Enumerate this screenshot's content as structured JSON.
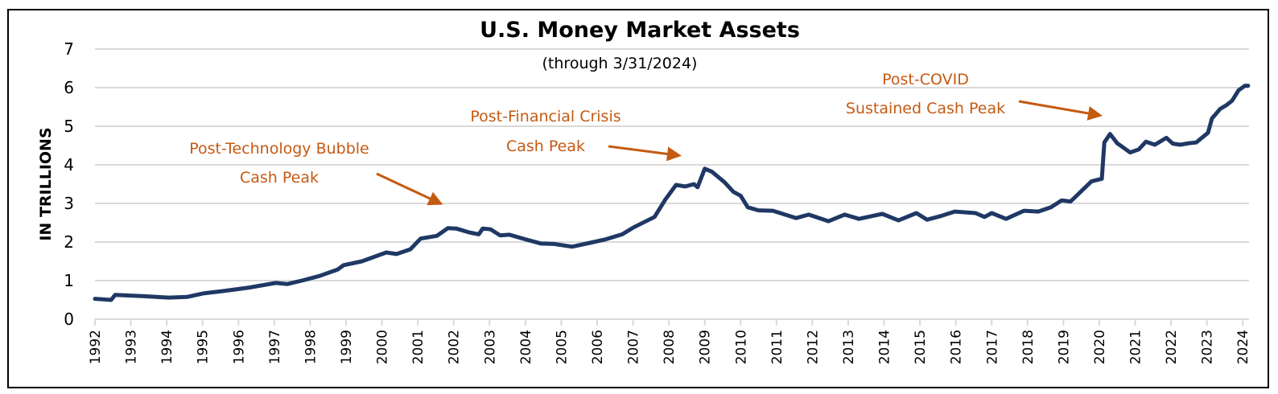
{
  "chart_data": {
    "type": "line",
    "title": "U.S. Money Market Assets",
    "subtitle": "(through 3/31/2024)",
    "xlabel": "",
    "ylabel": "IN TRILLIONS",
    "ylim": [
      0,
      7
    ],
    "xlim": [
      1992,
      2024.15
    ],
    "grid": true,
    "y_ticks": [
      "0",
      "1",
      "2",
      "3",
      "4",
      "5",
      "6",
      "7"
    ],
    "x_ticks": [
      "1992",
      "1993",
      "1994",
      "1995",
      "1996",
      "1997",
      "1998",
      "1999",
      "2000",
      "2001",
      "2002",
      "2003",
      "2004",
      "2005",
      "2006",
      "2007",
      "2008",
      "2009",
      "2010",
      "2011",
      "2012",
      "2013",
      "2014",
      "2015",
      "2016",
      "2017",
      "2018",
      "2019",
      "2020",
      "2021",
      "2022",
      "2023",
      "2024"
    ],
    "colors": {
      "line": "#1F3864",
      "annotation": "#C55A11",
      "grid": "#D9D9D9"
    },
    "series": [
      {
        "name": "U.S. Money Market Assets",
        "x": [
          1992.0,
          1992.45,
          1992.56,
          1993.32,
          1994.06,
          1994.58,
          1995.03,
          1995.57,
          1996.3,
          1997.04,
          1997.36,
          1997.81,
          1998.26,
          1998.77,
          1998.93,
          1999.44,
          2000.12,
          2000.41,
          2000.79,
          2001.08,
          2001.53,
          2001.84,
          2002.07,
          2002.43,
          2002.7,
          2002.81,
          2003.03,
          2003.3,
          2003.55,
          2004.0,
          2004.44,
          2004.8,
          2005.3,
          2005.8,
          2006.2,
          2006.7,
          2007.0,
          2007.6,
          2007.9,
          2008.2,
          2008.45,
          2008.7,
          2008.8,
          2009.0,
          2009.2,
          2009.55,
          2009.8,
          2010.0,
          2010.2,
          2010.5,
          2010.9,
          2011.55,
          2011.9,
          2012.45,
          2012.9,
          2013.3,
          2013.6,
          2013.95,
          2014.4,
          2014.9,
          2015.2,
          2015.6,
          2015.97,
          2016.55,
          2016.8,
          2017.0,
          2017.4,
          2017.9,
          2018.3,
          2018.65,
          2018.95,
          2019.2,
          2019.4,
          2019.78,
          2020.07,
          2020.14,
          2020.3,
          2020.5,
          2020.86,
          2021.1,
          2021.3,
          2021.55,
          2021.87,
          2022.05,
          2022.25,
          2022.5,
          2022.7,
          2023.03,
          2023.14,
          2023.37,
          2023.55,
          2023.7,
          2023.88,
          2024.06,
          2024.15
        ],
        "values": [
          0.53,
          0.5,
          0.63,
          0.6,
          0.56,
          0.58,
          0.67,
          0.73,
          0.82,
          0.94,
          0.91,
          1.01,
          1.12,
          1.29,
          1.4,
          1.5,
          1.73,
          1.69,
          1.81,
          2.09,
          2.16,
          2.36,
          2.35,
          2.25,
          2.2,
          2.35,
          2.33,
          2.17,
          2.19,
          2.07,
          1.96,
          1.95,
          1.88,
          1.98,
          2.06,
          2.2,
          2.37,
          2.65,
          3.1,
          3.48,
          3.44,
          3.5,
          3.42,
          3.9,
          3.82,
          3.55,
          3.3,
          3.2,
          2.9,
          2.82,
          2.81,
          2.62,
          2.71,
          2.54,
          2.71,
          2.6,
          2.66,
          2.73,
          2.56,
          2.75,
          2.58,
          2.68,
          2.79,
          2.75,
          2.65,
          2.75,
          2.6,
          2.81,
          2.79,
          2.9,
          3.08,
          3.05,
          3.23,
          3.57,
          3.64,
          4.58,
          4.8,
          4.56,
          4.32,
          4.4,
          4.6,
          4.52,
          4.7,
          4.55,
          4.52,
          4.56,
          4.58,
          4.83,
          5.2,
          5.45,
          5.55,
          5.66,
          5.93,
          6.05,
          6.05
        ]
      }
    ],
    "annotations": [
      {
        "lines": [
          "Post-Technology Bubble",
          "Cash Peak"
        ],
        "points_to_year": 2002
      },
      {
        "lines": [
          "Post-Financial Crisis",
          "Cash Peak"
        ],
        "points_to_year": 2009
      },
      {
        "lines": [
          "Post-COVID",
          "Sustained Cash Peak"
        ],
        "points_to_year": 2020.3
      }
    ]
  }
}
